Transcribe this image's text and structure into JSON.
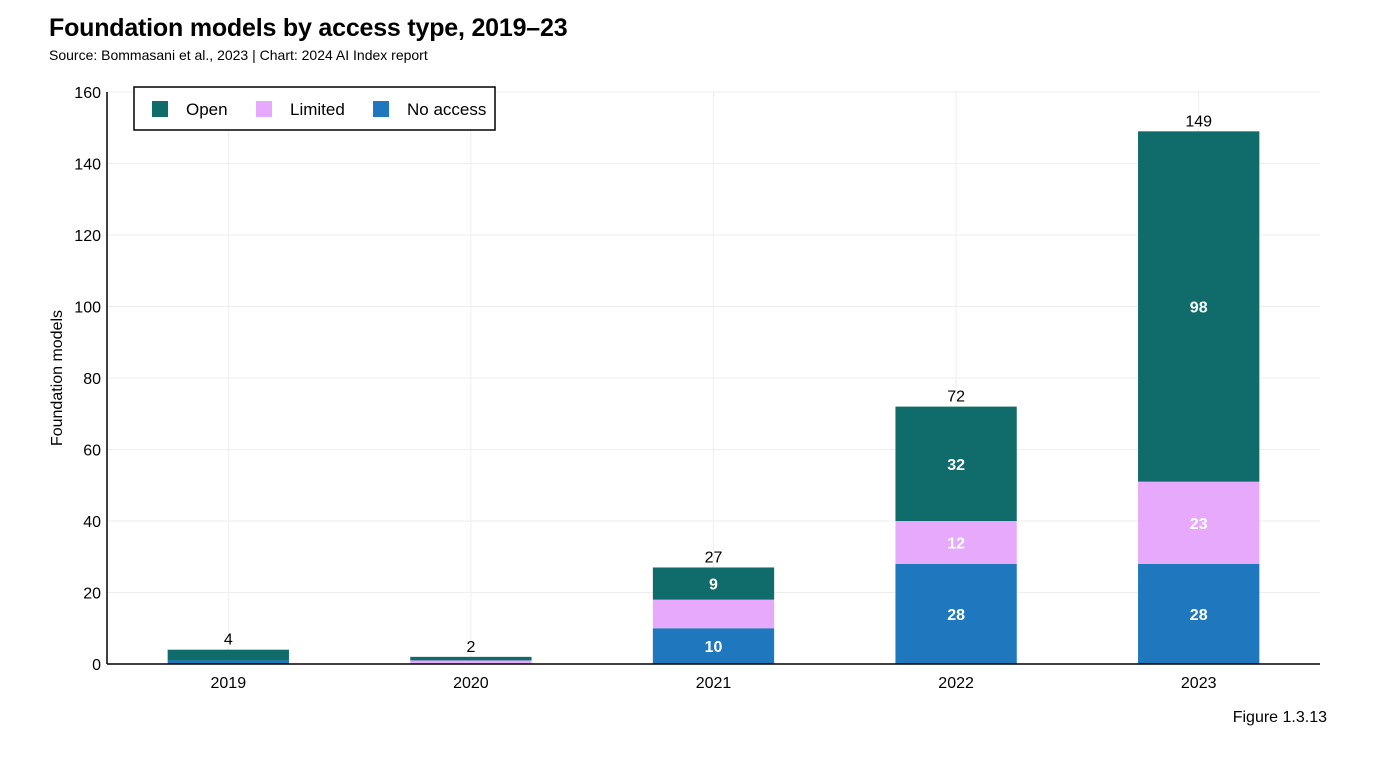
{
  "title": "Foundation models by access type, 2019–23",
  "subtitle": "Source: Bommasani et al., 2023 | Chart: 2024 AI Index report",
  "figure_label": "Figure 1.3.13",
  "chart_data": {
    "type": "bar",
    "stacked": true,
    "categories": [
      "2019",
      "2020",
      "2021",
      "2022",
      "2023"
    ],
    "series": [
      {
        "name": "No access",
        "color": "#1f77bd",
        "values": [
          1,
          0,
          10,
          28,
          28
        ],
        "labels": [
          "",
          "",
          "10",
          "28",
          "28"
        ]
      },
      {
        "name": "Limited",
        "color": "#e6a9fb",
        "values": [
          0,
          1,
          8,
          12,
          23
        ],
        "labels": [
          "",
          "",
          "",
          "12",
          "23"
        ]
      },
      {
        "name": "Open",
        "color": "#106b6b",
        "values": [
          3,
          1,
          9,
          32,
          98
        ],
        "labels": [
          "",
          "",
          "9",
          "32",
          "98"
        ]
      }
    ],
    "totals": [
      4,
      2,
      27,
      72,
      149
    ],
    "legend_order": [
      "Open",
      "Limited",
      "No access"
    ],
    "legend_position": "top-left",
    "xlabel": "",
    "ylabel": "Foundation models",
    "ylim": [
      0,
      160
    ],
    "yticks": [
      0,
      20,
      40,
      60,
      80,
      100,
      120,
      140,
      160
    ],
    "grid": true
  }
}
